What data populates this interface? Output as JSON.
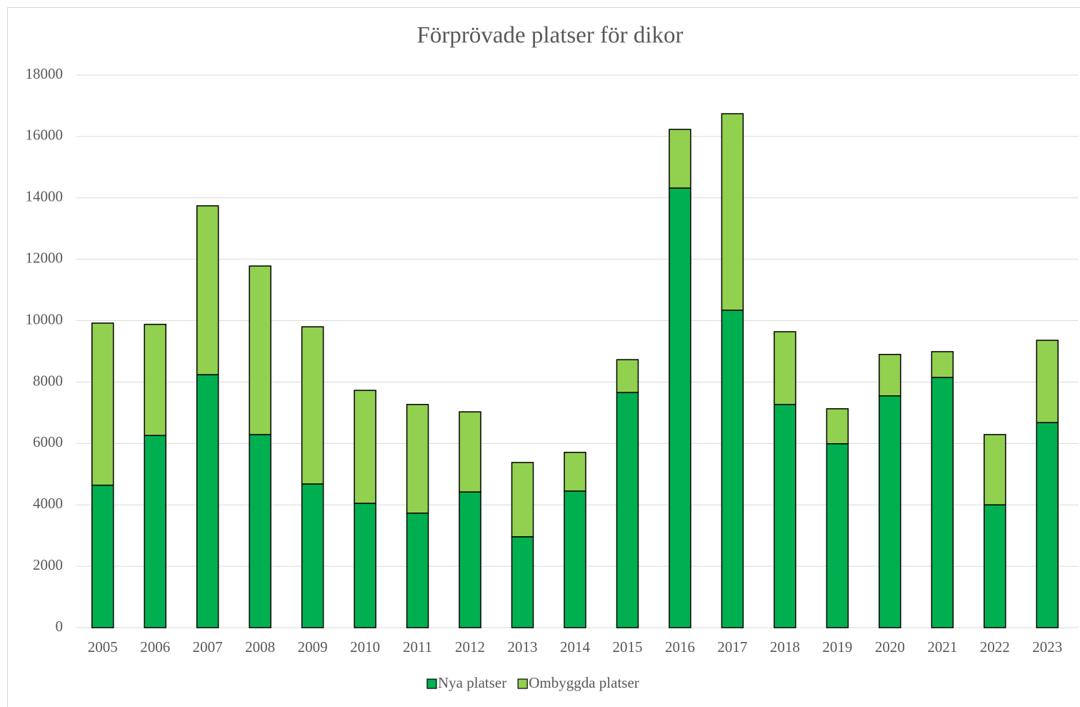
{
  "chart_data": {
    "type": "stacked_bar",
    "title": "Förprövade platser för dikor",
    "categories": [
      "2005",
      "2006",
      "2007",
      "2008",
      "2009",
      "2010",
      "2011",
      "2012",
      "2013",
      "2014",
      "2015",
      "2016",
      "2017",
      "2018",
      "2019",
      "2020",
      "2021",
      "2022",
      "2023"
    ],
    "series": [
      {
        "name": "Nya platser",
        "color": "#00b050",
        "values": [
          4640,
          6260,
          8240,
          6290,
          4680,
          4050,
          3730,
          4420,
          2960,
          4450,
          7660,
          14320,
          10340,
          7270,
          5990,
          7550,
          8150,
          4000,
          6680
        ]
      },
      {
        "name": "Ombyggda platser",
        "color": "#92d050",
        "values": [
          5280,
          3620,
          5500,
          5490,
          5120,
          3680,
          3540,
          2610,
          2420,
          1260,
          1070,
          1910,
          6400,
          2370,
          1140,
          1350,
          840,
          2290,
          2680
        ]
      }
    ],
    "ylim": [
      0,
      18000
    ],
    "yticks": [
      0,
      2000,
      4000,
      6000,
      8000,
      10000,
      12000,
      14000,
      16000,
      18000
    ],
    "grid": true,
    "legend": "bottom"
  }
}
